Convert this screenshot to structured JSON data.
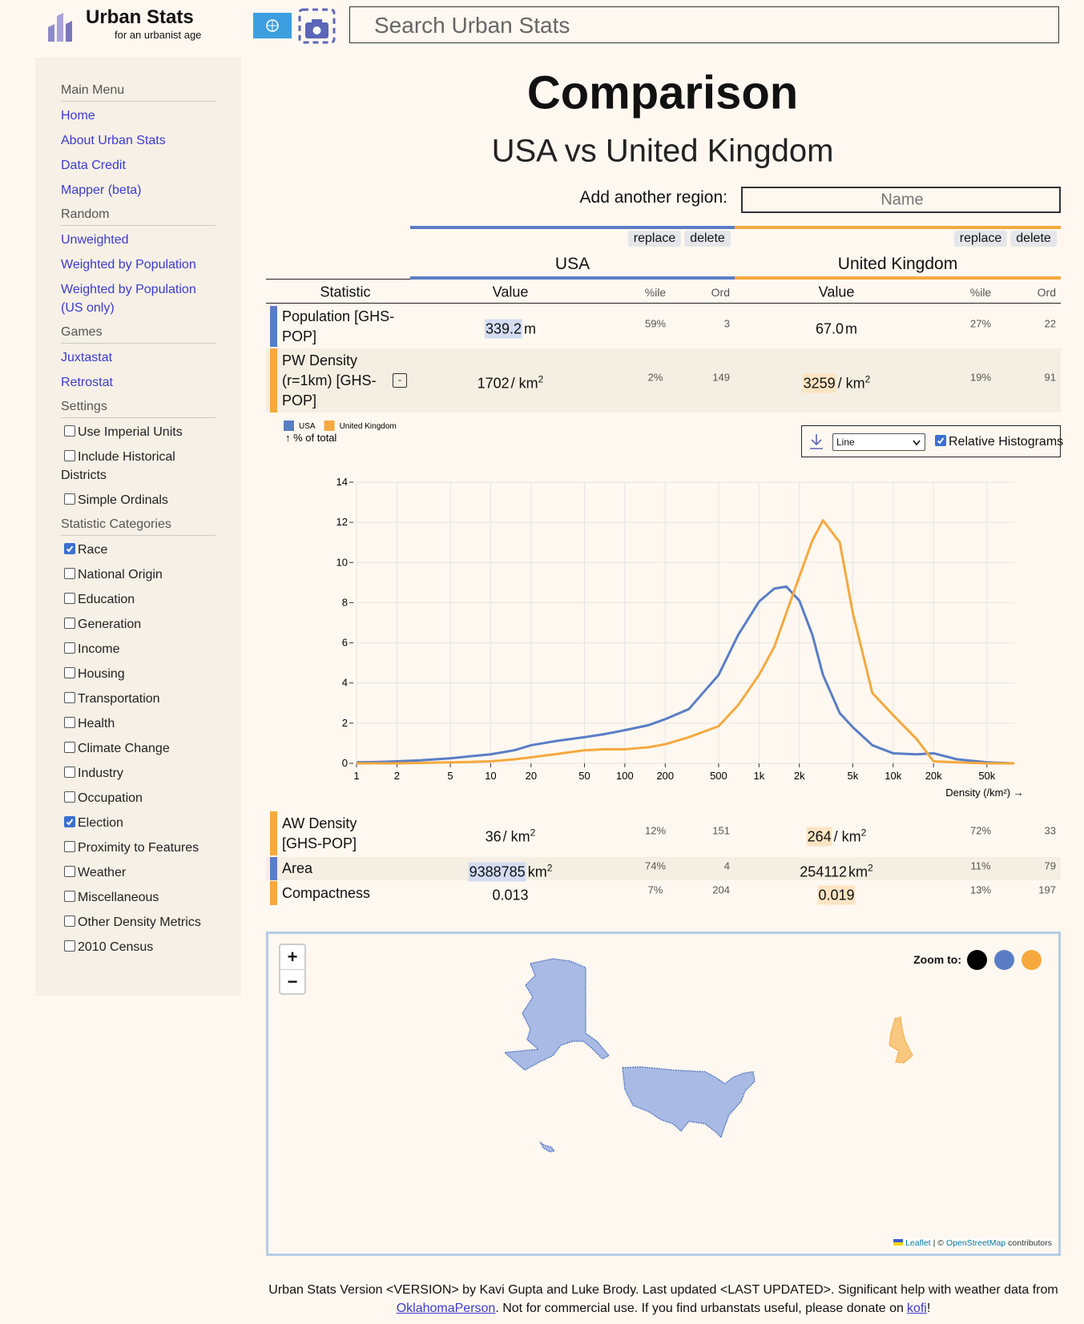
{
  "header": {
    "title": "Urban Stats",
    "tagline": "for an urbanist age",
    "search_placeholder": "Search Urban Stats"
  },
  "sidebar": {
    "sections": [
      {
        "title": "Main Menu",
        "links": [
          "Home",
          "About Urban Stats",
          "Data Credit",
          "Mapper (beta)"
        ]
      },
      {
        "title": "Random",
        "links": [
          "Unweighted",
          "Weighted by Population",
          "Weighted by Population (US only)"
        ]
      },
      {
        "title": "Games",
        "links": [
          "Juxtastat",
          "Retrostat"
        ]
      },
      {
        "title": "Settings",
        "options": [
          {
            "label": "Use Imperial Units",
            "checked": false
          },
          {
            "label": "Include Historical Districts",
            "checked": false
          },
          {
            "label": "Simple Ordinals",
            "checked": false
          }
        ]
      },
      {
        "title": "Statistic Categories",
        "options": [
          {
            "label": "Race",
            "checked": true
          },
          {
            "label": "National Origin",
            "checked": false
          },
          {
            "label": "Education",
            "checked": false
          },
          {
            "label": "Generation",
            "checked": false
          },
          {
            "label": "Income",
            "checked": false
          },
          {
            "label": "Housing",
            "checked": false
          },
          {
            "label": "Transportation",
            "checked": false
          },
          {
            "label": "Health",
            "checked": false
          },
          {
            "label": "Climate Change",
            "checked": false
          },
          {
            "label": "Industry",
            "checked": false
          },
          {
            "label": "Occupation",
            "checked": false
          },
          {
            "label": "Election",
            "checked": true
          },
          {
            "label": "Proximity to Features",
            "checked": false
          },
          {
            "label": "Weather",
            "checked": false
          },
          {
            "label": "Miscellaneous",
            "checked": false
          },
          {
            "label": "Other Density Metrics",
            "checked": false
          },
          {
            "label": "2010 Census",
            "checked": false
          }
        ]
      }
    ]
  },
  "main": {
    "title": "Comparison",
    "subtitle": "USA vs United Kingdom",
    "add_region_label": "Add another region:",
    "add_region_placeholder": "Name",
    "regions": [
      {
        "name": "USA",
        "color": "#5a7dc5",
        "highlight_color": "#d3dcf1"
      },
      {
        "name": "United Kingdom",
        "color": "#f5a93f",
        "highlight_color": "#fde4c2"
      }
    ],
    "buttons": [
      "replace",
      "delete"
    ],
    "table": {
      "headers": [
        "Statistic",
        "Value",
        "%ile",
        "Ord"
      ],
      "rows": [
        {
          "statistic": "Population [GHS-POP]",
          "cells": [
            {
              "value": "339.2",
              "unit": "m",
              "percentile": "59%",
              "ordinal": 3,
              "highlight": true
            },
            {
              "value": "67.0",
              "unit": "m",
              "percentile": "27%",
              "ordinal": 22,
              "highlight": false
            }
          ]
        },
        {
          "statistic": "PW Density (r=1km) [GHS-POP]",
          "toggle": "-",
          "cells": [
            {
              "value": "1702",
              "unit": "/ km",
              "unit_sup": "2",
              "percentile": "2%",
              "ordinal": 149,
              "highlight": false
            },
            {
              "value": "3259",
              "unit": "/ km",
              "unit_sup": "2",
              "percentile": "19%",
              "ordinal": 91,
              "highlight": true
            }
          ]
        },
        {
          "statistic": "AW Density [GHS-POP]",
          "cells": [
            {
              "value": "36",
              "unit": "/ km",
              "unit_sup": "2",
              "percentile": "12%",
              "ordinal": 151,
              "highlight": false
            },
            {
              "value": "264",
              "unit": "/ km",
              "unit_sup": "2",
              "percentile": "72%",
              "ordinal": 33,
              "highlight": true
            }
          ]
        },
        {
          "statistic": "Area",
          "cells": [
            {
              "value": "9388785",
              "unit": "km",
              "unit_sup": "2",
              "percentile": "74%",
              "ordinal": 4,
              "highlight": true
            },
            {
              "value": "254112",
              "unit": "km",
              "unit_sup": "2",
              "percentile": "11%",
              "ordinal": 79,
              "highlight": false
            }
          ]
        },
        {
          "statistic": "Compactness",
          "cells": [
            {
              "value": "0.013",
              "percentile": "7%",
              "ordinal": 204,
              "highlight": false
            },
            {
              "value": "0.019",
              "percentile": "13%",
              "ordinal": 197,
              "highlight": true
            }
          ]
        }
      ]
    },
    "chart_controls": {
      "mode": "Line",
      "relative_label": "Relative Histograms",
      "relative_checked": true
    }
  },
  "chart_data": {
    "type": "line",
    "y_label": "↑ % of total",
    "x_label": "Density (/km²) →",
    "xlog": true,
    "legend": "top-left",
    "grid": true,
    "xlim": [
      1,
      80000
    ],
    "ylim": [
      0,
      14
    ],
    "yticks": [
      0,
      2,
      4,
      6,
      8,
      10,
      12,
      14
    ],
    "xticks": [
      1,
      2,
      5,
      10,
      20,
      50,
      100,
      200,
      500,
      {
        "value": 1000,
        "label": "1k"
      },
      {
        "value": 2000,
        "label": "2k"
      },
      {
        "value": 5000,
        "label": "5k"
      },
      {
        "value": 10000,
        "label": "10k"
      },
      {
        "value": 20000,
        "label": "20k"
      },
      {
        "value": 50000,
        "label": "50k"
      }
    ],
    "x": [
      1,
      1.5,
      2,
      3,
      5,
      7,
      10,
      15,
      20,
      30,
      50,
      70,
      100,
      150,
      200,
      300,
      500,
      700,
      1000,
      1300,
      1600,
      2000,
      2500,
      3000,
      4000,
      5000,
      7000,
      10000,
      15000,
      20000,
      30000,
      50000,
      80000
    ],
    "series": [
      {
        "name": "USA",
        "color": "#5a7dc5",
        "values": [
          0.05,
          0.07,
          0.1,
          0.15,
          0.25,
          0.35,
          0.45,
          0.65,
          0.9,
          1.1,
          1.3,
          1.45,
          1.65,
          1.9,
          2.2,
          2.7,
          4.4,
          6.4,
          8.05,
          8.7,
          8.8,
          8.1,
          6.4,
          4.4,
          2.5,
          1.8,
          0.9,
          0.5,
          0.45,
          0.5,
          0.2,
          0.05,
          0
        ]
      },
      {
        "name": "United Kingdom",
        "color": "#f5a93f",
        "values": [
          0,
          0,
          0,
          0.02,
          0.05,
          0.07,
          0.1,
          0.2,
          0.3,
          0.45,
          0.65,
          0.7,
          0.7,
          0.8,
          0.95,
          1.3,
          1.85,
          2.9,
          4.4,
          5.8,
          7.5,
          9.3,
          11.1,
          12.1,
          11.0,
          7.5,
          3.5,
          2.4,
          1.2,
          0.1,
          0.05,
          0,
          0
        ]
      }
    ]
  },
  "map": {
    "zoom_in": "+",
    "zoom_out": "−",
    "zoom_label": "Zoom to:",
    "attribution": {
      "leaflet": "Leaflet",
      "separator": "| ©",
      "osm": "OpenStreetMap",
      "suffix": "contributors"
    }
  },
  "footer": {
    "line1": "Urban Stats Version <VERSION> by Kavi Gupta and Luke Brody. Last updated <LAST UPDATED>. Significant help with weather data from",
    "link1": "OklahomaPerson",
    "line2": ". Not for commercial use. If you find urbanstats useful, please donate on",
    "link2": "kofi",
    "end": "!"
  }
}
